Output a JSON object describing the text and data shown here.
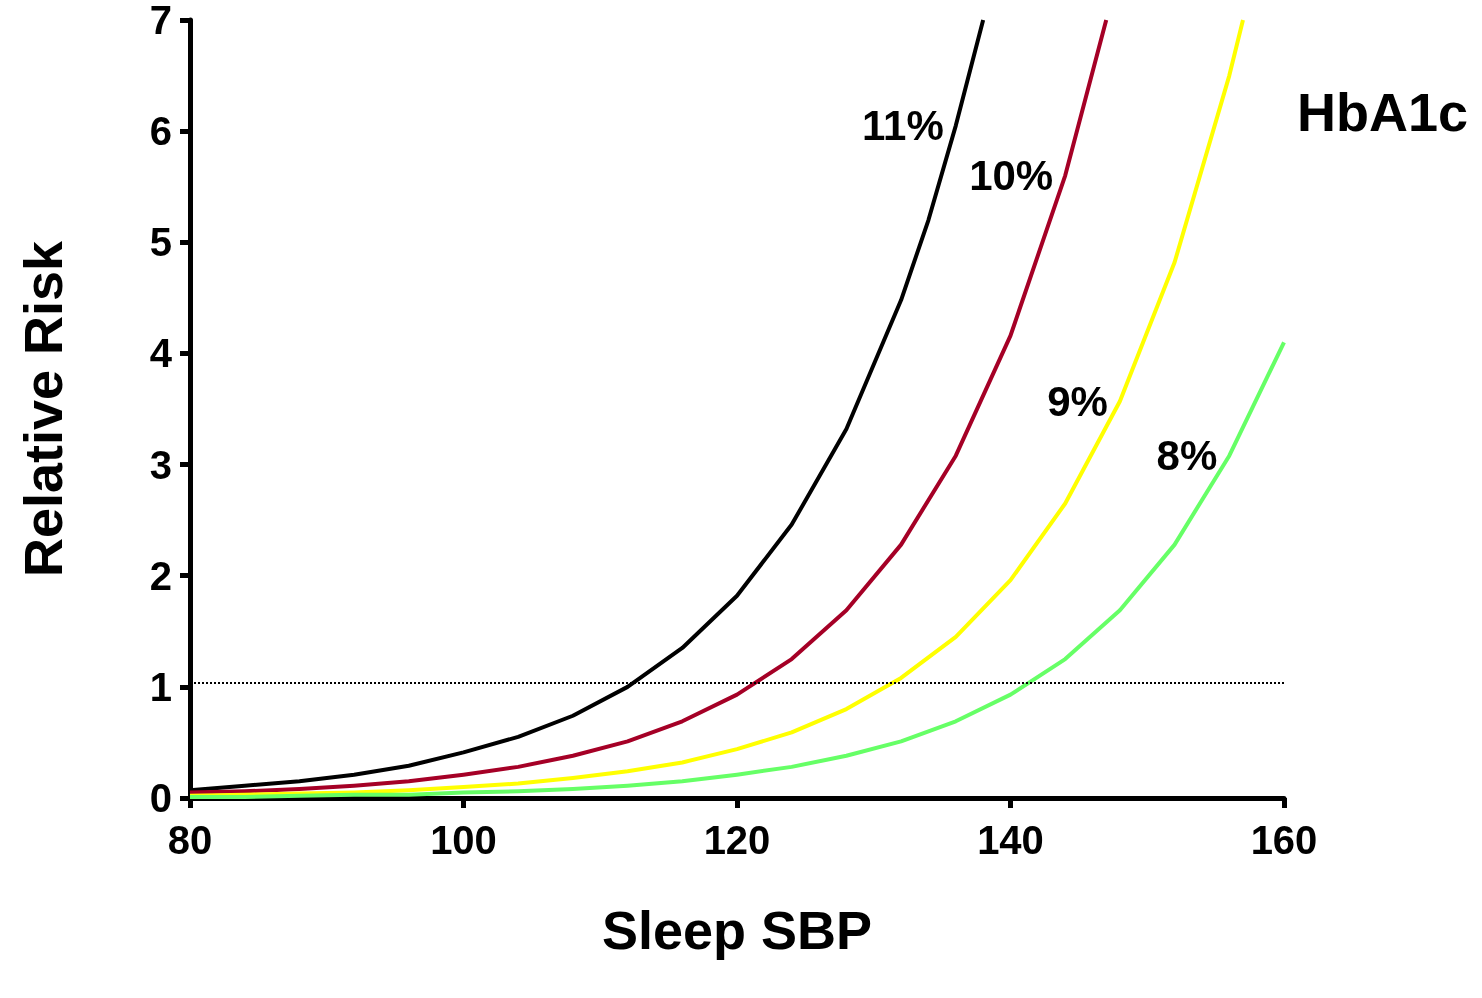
{
  "chart_data": {
    "type": "line",
    "xlabel": "Sleep SBP",
    "ylabel": "Relative Risk",
    "legend_title": "HbA1c",
    "xlim": [
      80,
      160
    ],
    "xticks": [
      80,
      100,
      120,
      140,
      160
    ],
    "ylim": [
      0,
      7
    ],
    "yticks": [
      0,
      1,
      2,
      3,
      4,
      5,
      6,
      7
    ],
    "grid": false,
    "marker": "none",
    "line_style": "solid",
    "ref_lines": [
      {
        "axis": "y",
        "value": 1.04,
        "label": null,
        "color": "#000000",
        "line_style": "dotted"
      }
    ],
    "series": [
      {
        "name": "11%",
        "color": "#000000",
        "x": [
          80,
          84,
          88,
          92,
          96,
          100,
          104,
          108,
          112,
          116,
          120,
          124,
          128,
          132,
          134,
          136,
          138
        ],
        "values": [
          0.07,
          0.11,
          0.15,
          0.21,
          0.29,
          0.41,
          0.55,
          0.74,
          1.0,
          1.35,
          1.82,
          2.46,
          3.32,
          4.48,
          5.2,
          6.05,
          7.0
        ]
      },
      {
        "name": "10%",
        "color": "#a50026",
        "x": [
          80,
          84,
          88,
          92,
          96,
          100,
          104,
          108,
          112,
          116,
          120,
          124,
          128,
          132,
          136,
          140,
          144,
          147
        ],
        "values": [
          0.05,
          0.06,
          0.08,
          0.11,
          0.15,
          0.21,
          0.28,
          0.38,
          0.51,
          0.69,
          0.93,
          1.25,
          1.69,
          2.28,
          3.08,
          4.16,
          5.6,
          7.0
        ]
      },
      {
        "name": "9%",
        "color": "#ffff00",
        "x": [
          80,
          84,
          88,
          92,
          96,
          100,
          104,
          108,
          112,
          116,
          120,
          124,
          128,
          132,
          136,
          140,
          144,
          148,
          152,
          156,
          157
        ],
        "values": [
          0.02,
          0.03,
          0.04,
          0.05,
          0.07,
          0.1,
          0.13,
          0.18,
          0.24,
          0.32,
          0.44,
          0.59,
          0.8,
          1.08,
          1.45,
          1.96,
          2.65,
          3.57,
          4.82,
          6.5,
          7.0
        ]
      },
      {
        "name": "8%",
        "color": "#66ff66",
        "x": [
          80,
          84,
          88,
          92,
          96,
          100,
          104,
          108,
          112,
          116,
          120,
          124,
          128,
          132,
          136,
          140,
          144,
          148,
          152,
          156,
          160
        ],
        "values": [
          0.01,
          0.01,
          0.02,
          0.03,
          0.03,
          0.05,
          0.06,
          0.08,
          0.11,
          0.15,
          0.21,
          0.28,
          0.38,
          0.51,
          0.69,
          0.93,
          1.25,
          1.69,
          2.28,
          3.08,
          4.1
        ]
      }
    ]
  }
}
